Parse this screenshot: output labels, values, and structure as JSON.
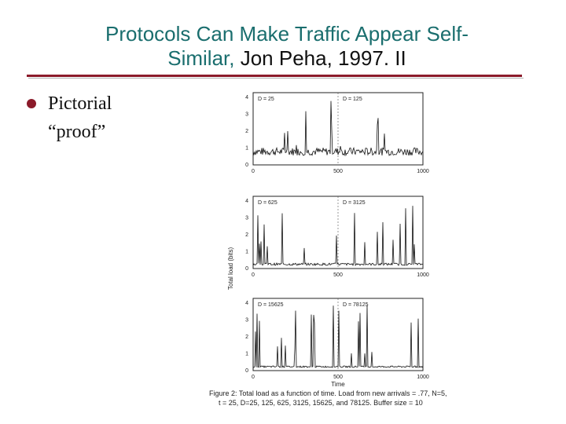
{
  "slide": {
    "title_line1": "Protocols Can Make Traffic Appear Self-",
    "title_line2_colored": "Similar,",
    "title_line2_plain": " Jon Peha, 1997. II",
    "bullet_line1": "Pictorial",
    "bullet_line2": "“proof”",
    "accent_color": "#8b1a2a",
    "title_color": "#1a6e6e"
  },
  "figure": {
    "ylabel": "Total load (bits)",
    "xlabel": "Time",
    "caption_line1": "Figure 2: Total load as a function of time. Load from new arrivals = .77, N=5,",
    "caption_line2": "t = 25, D=25, 125, 625, 3125, 15625, and 78125. Buffer size = 10",
    "panels": [
      {
        "label_left": "D = 25",
        "label_right": "D = 125",
        "xticks": [
          "0",
          "500",
          "1000"
        ],
        "yticks": [
          "0",
          "1",
          "2",
          "3",
          "4"
        ]
      },
      {
        "label_left": "D = 625",
        "label_right": "D = 3125",
        "xticks": [
          "0",
          "500",
          "1000"
        ],
        "yticks": [
          "0",
          "1",
          "2",
          "3",
          "4"
        ]
      },
      {
        "label_left": "D = 15625",
        "label_right": "D = 78125",
        "xticks": [
          "0",
          "500",
          "1000"
        ],
        "yticks": [
          "0",
          "1",
          "2",
          "3",
          "4"
        ]
      }
    ]
  }
}
